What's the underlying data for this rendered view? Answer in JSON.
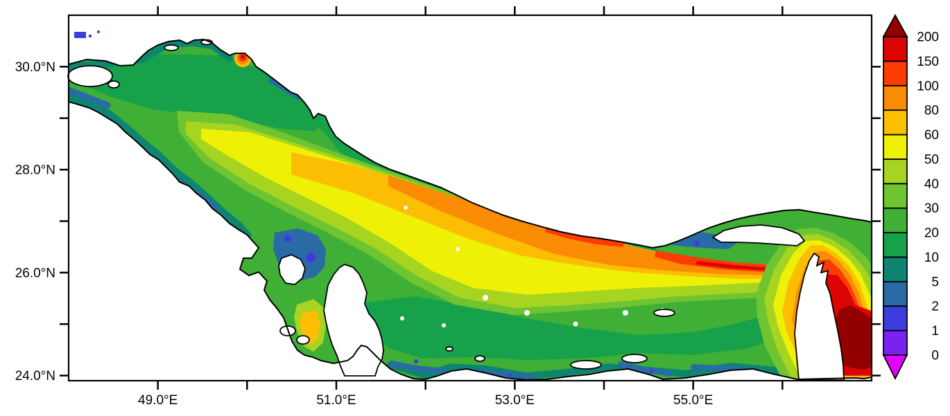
{
  "figure": {
    "kind": "geographic filled-contour heatmap",
    "area_shown": "Persian Gulf, Strait of Hormuz and northwestern Gulf of Oman",
    "background_color": "#ffffff",
    "frame_color": "#000000"
  },
  "chart_data": {
    "type": "heatmap",
    "title": "",
    "xlabel": "",
    "ylabel": "",
    "x_axis": {
      "unit": "degrees East longitude",
      "range": [
        48.0,
        57.0
      ],
      "tick_values": [
        49,
        50,
        51,
        52,
        53,
        54,
        55,
        56
      ],
      "tick_labels": {
        "49": "49.0°E",
        "51": "51.0°E",
        "53": "53.0°E",
        "55": "55.0°E"
      }
    },
    "y_axis": {
      "unit": "degrees North latitude",
      "range": [
        23.9,
        31.0
      ],
      "tick_values": [
        24,
        25,
        26,
        27,
        28,
        29,
        30
      ],
      "tick_labels": {
        "24": "24.0°N",
        "26": "26.0°N",
        "28": "28.0°N",
        "30": "30.0°N"
      }
    },
    "grid": false,
    "legend_position": "colorbar right",
    "colorbar": {
      "orientation": "vertical",
      "levels": [
        0,
        1,
        2,
        5,
        10,
        20,
        30,
        40,
        50,
        60,
        80,
        100,
        150,
        200
      ],
      "colors_bottom_to_top": [
        "#7a22f0",
        "#3d3ddd",
        "#2a6ba5",
        "#0e8570",
        "#17a14b",
        "#3faf36",
        "#6ec431",
        "#a6d420",
        "#eef005",
        "#fcbe03",
        "#fa8c05",
        "#fc3c03",
        "#dc0404"
      ],
      "under_color": "#e004fc",
      "over_color": "#920000",
      "outline_color": "#000000"
    },
    "no_data_color": "#ffffff",
    "regions": [
      {
        "area": "Gulf of Oman deep zone at southeast corner (~56.5°E, 24.5-25°N)",
        "value": "over 200 (dark red)"
      },
      {
        "area": "Strait of Hormuz around Musandam Peninsula",
        "value": "100-200 (red / orange-red rings)"
      },
      {
        "area": "trough along Iranian side from ~52°E to 56°E",
        "value": "80-150 (orange band with red streaks)"
      },
      {
        "area": "central basin band from ~49.5°E to 55°E",
        "value": "50-80 (yellow to amber)"
      },
      {
        "area": "open gulf flanks and northwest basin",
        "value": "10-50 (greens)"
      },
      {
        "area": "coastal shallows: NW delta, Saudi/Bahrain bay, UAE south coast, around Qeshm",
        "value": "0-10 (teal, blue, violet)"
      },
      {
        "area": "small hotspot on north coast near 49.9°E, 30.2°N",
        "value": "80-150 (orange-red spot)"
      },
      {
        "area": "Gulf of Salwa west of Qatar",
        "value": "50-80 (yellow-amber patch)"
      },
      {
        "area": "land and islands (Arabia, Iran, Qatar, Bahrain, Qeshm, Musandam)",
        "value": "no data (white)"
      }
    ]
  }
}
